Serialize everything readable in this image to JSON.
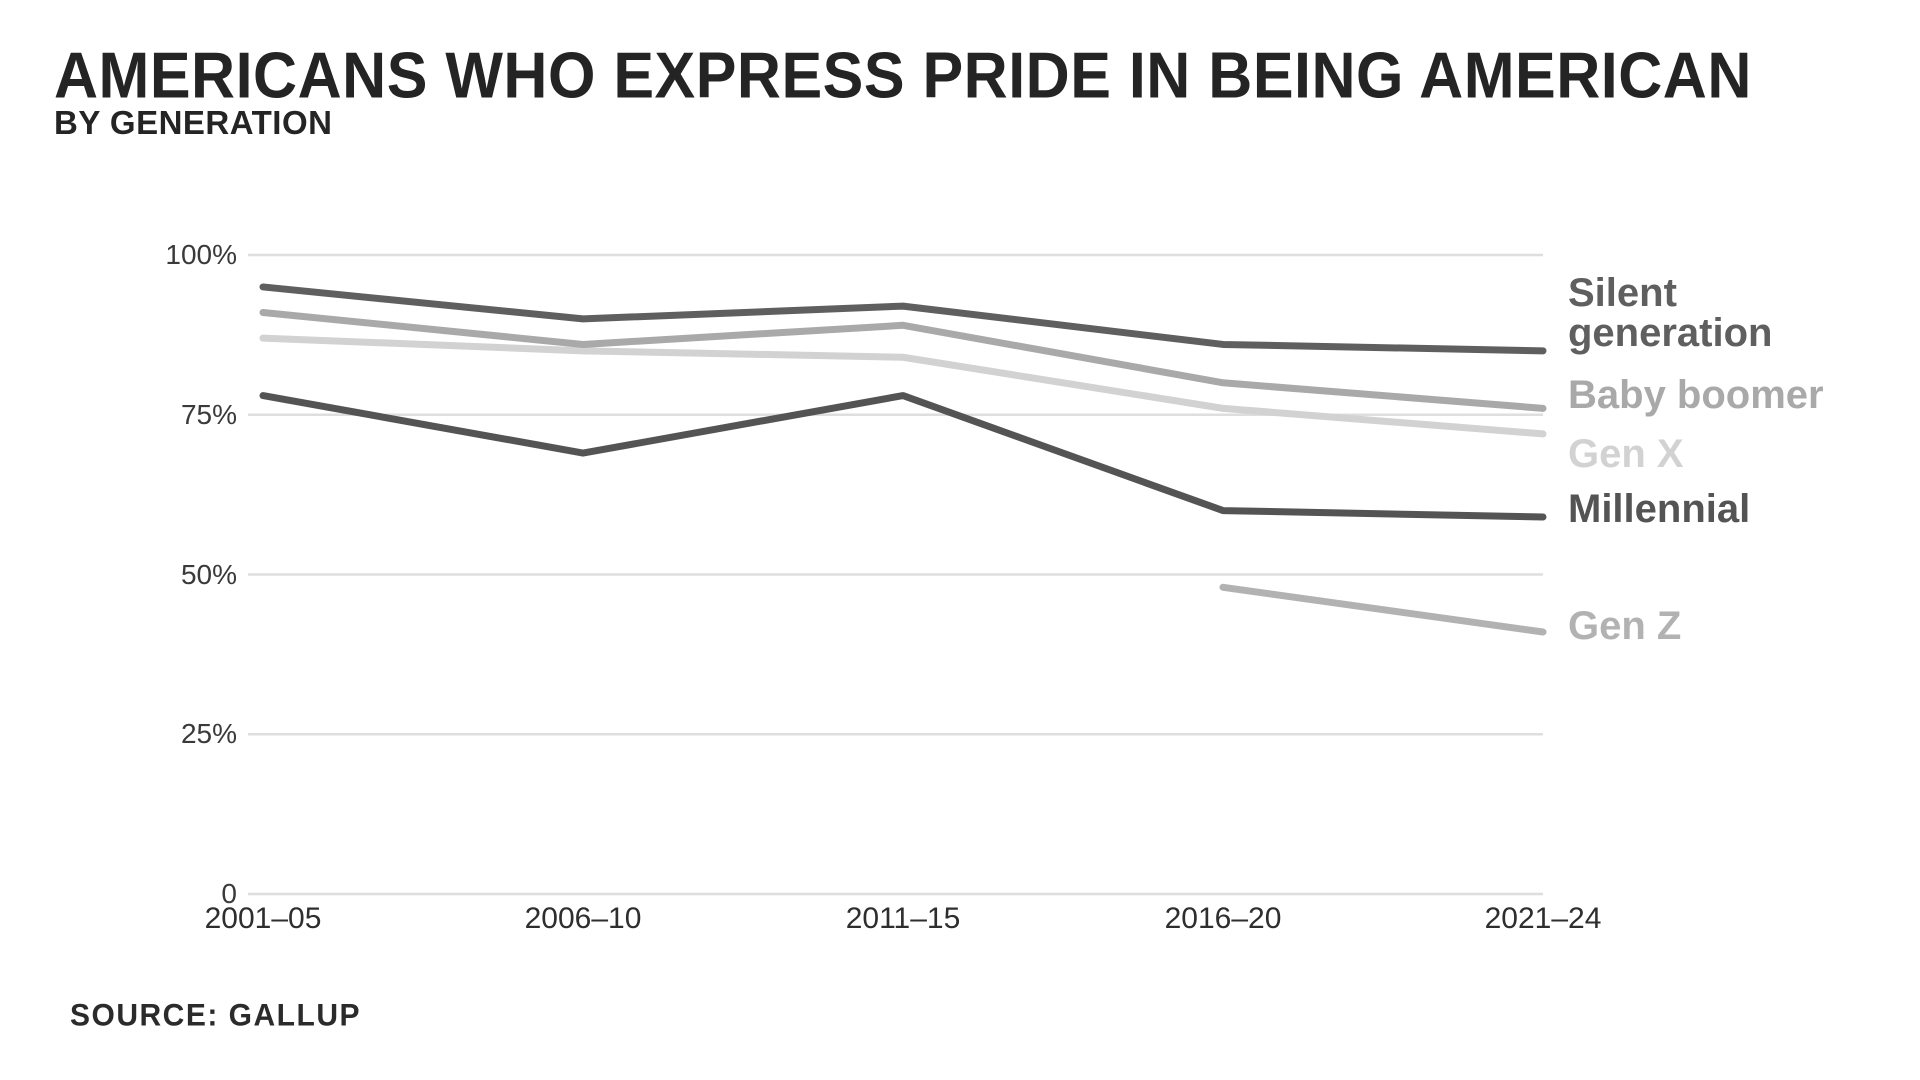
{
  "header": {
    "title": "AMERICANS WHO EXPRESS PRIDE IN BEING AMERICAN",
    "subtitle": "BY GENERATION"
  },
  "source": {
    "label": "SOURCE: GALLUP"
  },
  "colors": {
    "background": "#ffffff",
    "gridline": "#dedede",
    "axis_text": "#3a3a3a",
    "title_text": "#242424"
  },
  "chart_data": {
    "type": "line",
    "title": "Americans who express pride in being American",
    "subtitle": "By generation",
    "categories": [
      "2001–05",
      "2006–10",
      "2011–15",
      "2016–20",
      "2021–24"
    ],
    "series": [
      {
        "name": "Silent generation",
        "color": "#5f5f5f",
        "values": [
          95,
          90,
          92,
          86,
          85
        ]
      },
      {
        "name": "Baby boomer",
        "color": "#a9a9a9",
        "values": [
          91,
          86,
          89,
          80,
          76
        ]
      },
      {
        "name": "Gen X",
        "color": "#d2d2d2",
        "values": [
          87,
          85,
          84,
          76,
          72
        ]
      },
      {
        "name": "Millennial",
        "color": "#545454",
        "values": [
          78,
          69,
          78,
          60,
          59
        ]
      },
      {
        "name": "Gen Z",
        "color": "#b2b2b2",
        "values": [
          null,
          null,
          null,
          48,
          41
        ]
      }
    ],
    "yticks": [
      {
        "value": 100,
        "label": "100%"
      },
      {
        "value": 75,
        "label": "75%"
      },
      {
        "value": 50,
        "label": "50%"
      },
      {
        "value": 25,
        "label": "25%"
      },
      {
        "value": 0,
        "label": "0"
      }
    ],
    "ylim": [
      0,
      100
    ],
    "xlabel": "",
    "ylabel": "",
    "grid": "horizontal-only",
    "legend_position": "right",
    "legend_entries": [
      "Silent generation",
      "Baby boomer",
      "Gen X",
      "Millennial",
      "Gen Z"
    ]
  }
}
